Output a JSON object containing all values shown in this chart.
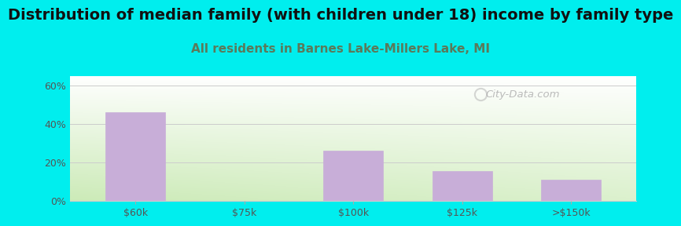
{
  "title": "Distribution of median family (with children under 18) income by family type",
  "subtitle": "All residents in Barnes Lake-Millers Lake, MI",
  "categories": [
    "$60k",
    "$75k",
    "$100k",
    "$125k",
    ">$150k"
  ],
  "values": [
    46.3,
    0.0,
    26.0,
    15.5,
    11.0
  ],
  "bar_color": "#c8aed8",
  "background_color": "#00eeee",
  "plot_bg_topleft": "#e8f5e0",
  "plot_bg_topright": "#ffffff",
  "plot_bg_bottomleft": "#c8e6b0",
  "plot_bg_bottomright": "#e8f5e0",
  "ylabel_ticks": [
    "0%",
    "20%",
    "40%",
    "60%"
  ],
  "ytick_values": [
    0,
    20,
    40,
    60
  ],
  "ylim": [
    0,
    65
  ],
  "title_fontsize": 14,
  "subtitle_fontsize": 11,
  "subtitle_color": "#5a7a5a",
  "title_color": "#111111",
  "tick_color": "#555555",
  "grid_color": "#cccccc",
  "watermark_text": "City-Data.com"
}
